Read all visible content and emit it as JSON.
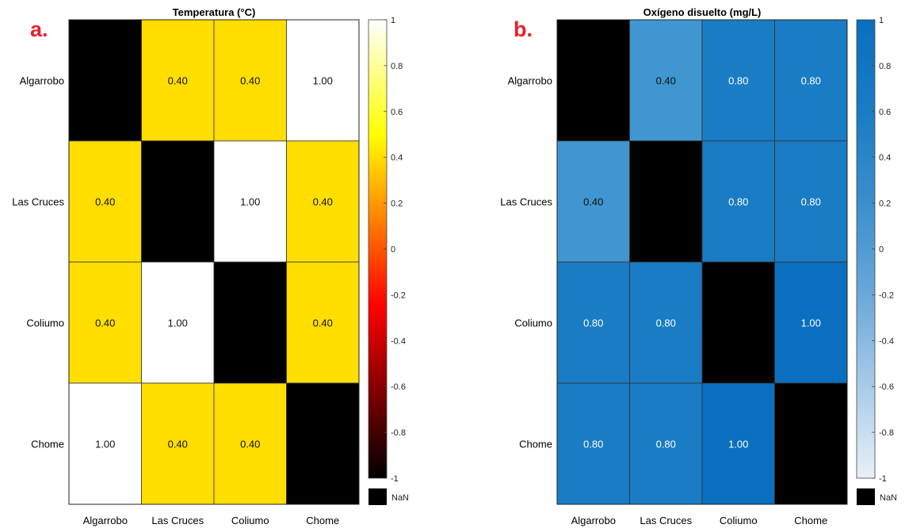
{
  "chart_data": [
    {
      "type": "heatmap",
      "panel_label": "a.",
      "title": "Temperatura (°C)",
      "rows": [
        "Algarrobo",
        "Las Cruces",
        "Coliumo",
        "Chome"
      ],
      "columns": [
        "Algarrobo",
        "Las Cruces",
        "Coliumo",
        "Chome"
      ],
      "values": [
        [
          null,
          0.4,
          0.4,
          1.0
        ],
        [
          0.4,
          null,
          1.0,
          0.4
        ],
        [
          0.4,
          1.0,
          null,
          0.4
        ],
        [
          1.0,
          0.4,
          0.4,
          null
        ]
      ],
      "value_labels": [
        [
          "",
          "0.40",
          "0.40",
          "1.00"
        ],
        [
          "0.40",
          "",
          "1.00",
          "0.40"
        ],
        [
          "0.40",
          "1.00",
          "",
          "0.40"
        ],
        [
          "1.00",
          "0.40",
          "0.40",
          ""
        ]
      ],
      "colormap": "hot",
      "cell_colors": [
        [
          "#000000",
          "#ffde00",
          "#ffde00",
          "#ffffff"
        ],
        [
          "#ffde00",
          "#000000",
          "#ffffff",
          "#ffde00"
        ],
        [
          "#ffde00",
          "#ffffff",
          "#000000",
          "#ffde00"
        ],
        [
          "#ffffff",
          "#ffde00",
          "#ffde00",
          "#000000"
        ]
      ],
      "colorbar": {
        "range": [
          -1,
          1
        ],
        "ticks": [
          "1",
          "0.8",
          "0.6",
          "0.4",
          "0.2",
          "0",
          "-0.2",
          "-0.4",
          "-0.6",
          "-0.8",
          "-1"
        ],
        "gradient": [
          "#000000",
          "#550000",
          "#aa0000",
          "#ff0000",
          "#ff5500",
          "#ffaa00",
          "#ffff00",
          "#ffff80",
          "#ffffff"
        ],
        "nan_label": "NaN",
        "nan_color": "#000000"
      }
    },
    {
      "type": "heatmap",
      "panel_label": "b.",
      "title": "Oxígeno disuelto (mg/L)",
      "rows": [
        "Algarrobo",
        "Las Cruces",
        "Coliumo",
        "Chome"
      ],
      "columns": [
        "Algarrobo",
        "Las Cruces",
        "Coliumo",
        "Chome"
      ],
      "values": [
        [
          null,
          0.4,
          0.8,
          0.8
        ],
        [
          0.4,
          null,
          0.8,
          0.8
        ],
        [
          0.8,
          0.8,
          null,
          1.0
        ],
        [
          0.8,
          0.8,
          1.0,
          null
        ]
      ],
      "value_labels": [
        [
          "",
          "0.40",
          "0.80",
          "0.80"
        ],
        [
          "0.40",
          "",
          "0.80",
          "0.80"
        ],
        [
          "0.80",
          "0.80",
          "",
          "1.00"
        ],
        [
          "0.80",
          "0.80",
          "1.00",
          ""
        ]
      ],
      "colormap": "blues",
      "cell_colors": [
        [
          "#000000",
          "#4096d0",
          "#1a7cc4",
          "#1a7cc4"
        ],
        [
          "#4096d0",
          "#000000",
          "#1a7cc4",
          "#1a7cc4"
        ],
        [
          "#1a7cc4",
          "#1a7cc4",
          "#000000",
          "#0a6fbe"
        ],
        [
          "#1a7cc4",
          "#1a7cc4",
          "#0a6fbe",
          "#000000"
        ]
      ],
      "colorbar": {
        "range": [
          -1,
          1
        ],
        "ticks": [
          "1",
          "0.8",
          "0.6",
          "0.4",
          "0.2",
          "0",
          "-0.2",
          "-0.4",
          "-0.6",
          "-0.8",
          "-1"
        ],
        "gradient": [
          "#e8f0f8",
          "#a9cbe8",
          "#6aa8d9",
          "#3a8fcc",
          "#1a7cc4",
          "#0a6fbe"
        ],
        "nan_label": "NaN",
        "nan_color": "#000000"
      }
    }
  ],
  "colors": {
    "panel_label": "#e8202a",
    "cell_border": "#333333",
    "text_on_light": "#111111",
    "text_on_dark": "#ffffff"
  }
}
